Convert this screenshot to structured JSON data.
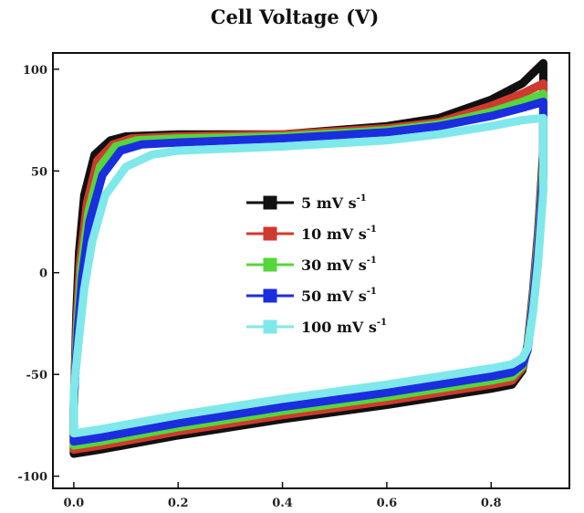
{
  "chart_data": {
    "type": "line",
    "title": "Cell Voltage (V)",
    "xlabel": "",
    "ylabel": "",
    "xlim": [
      -0.04,
      0.95
    ],
    "ylim": [
      -106,
      108
    ],
    "xticks": [
      "0.0",
      "0.2",
      "0.4",
      "0.6",
      "0.8"
    ],
    "xtick_values": [
      0.0,
      0.2,
      0.4,
      0.6,
      0.8
    ],
    "yticks": [
      "-100",
      "-50",
      "0",
      "50",
      "100"
    ],
    "ytick_values": [
      -100,
      -50,
      0,
      50,
      100
    ],
    "legend_position": "center",
    "series": [
      {
        "name": "5 mV s-1",
        "unit_main": "5 mV s",
        "unit_sup": "-1",
        "color": "#111111",
        "upper": [
          [
            0.0,
            -68
          ],
          [
            0.005,
            -20
          ],
          [
            0.01,
            10
          ],
          [
            0.02,
            38
          ],
          [
            0.04,
            58
          ],
          [
            0.07,
            65
          ],
          [
            0.1,
            67
          ],
          [
            0.2,
            68
          ],
          [
            0.4,
            68
          ],
          [
            0.6,
            72
          ],
          [
            0.7,
            76
          ],
          [
            0.8,
            85
          ],
          [
            0.86,
            93
          ],
          [
            0.9,
            103
          ]
        ],
        "lower": [
          [
            0.9,
            103
          ],
          [
            0.9,
            60
          ],
          [
            0.89,
            20
          ],
          [
            0.88,
            -10
          ],
          [
            0.87,
            -35
          ],
          [
            0.86,
            -48
          ],
          [
            0.84,
            -55
          ],
          [
            0.8,
            -57
          ],
          [
            0.6,
            -65
          ],
          [
            0.4,
            -72
          ],
          [
            0.2,
            -80
          ],
          [
            0.05,
            -87
          ],
          [
            0.0,
            -89
          ],
          [
            0.0,
            -68
          ]
        ]
      },
      {
        "name": "10 mV s-1",
        "unit_main": "10 mV s",
        "unit_sup": "-1",
        "color": "#d03a2e",
        "upper": [
          [
            0.0,
            -66
          ],
          [
            0.006,
            -22
          ],
          [
            0.012,
            5
          ],
          [
            0.025,
            34
          ],
          [
            0.045,
            55
          ],
          [
            0.075,
            63
          ],
          [
            0.11,
            66
          ],
          [
            0.2,
            67
          ],
          [
            0.4,
            68
          ],
          [
            0.6,
            71
          ],
          [
            0.7,
            74
          ],
          [
            0.8,
            82
          ],
          [
            0.86,
            88
          ],
          [
            0.9,
            93
          ]
        ],
        "lower": [
          [
            0.9,
            93
          ],
          [
            0.9,
            55
          ],
          [
            0.89,
            18
          ],
          [
            0.88,
            -12
          ],
          [
            0.87,
            -36
          ],
          [
            0.86,
            -47
          ],
          [
            0.84,
            -53
          ],
          [
            0.8,
            -55
          ],
          [
            0.6,
            -63
          ],
          [
            0.4,
            -70
          ],
          [
            0.2,
            -78
          ],
          [
            0.05,
            -85
          ],
          [
            0.0,
            -87
          ],
          [
            0.0,
            -66
          ]
        ]
      },
      {
        "name": "30 mV s-1",
        "unit_main": "30 mV s",
        "unit_sup": "-1",
        "color": "#55d63a",
        "upper": [
          [
            0.0,
            -65
          ],
          [
            0.007,
            -25
          ],
          [
            0.014,
            2
          ],
          [
            0.028,
            30
          ],
          [
            0.05,
            52
          ],
          [
            0.08,
            62
          ],
          [
            0.12,
            65
          ],
          [
            0.2,
            66
          ],
          [
            0.4,
            67
          ],
          [
            0.6,
            70
          ],
          [
            0.7,
            73
          ],
          [
            0.8,
            79
          ],
          [
            0.86,
            84
          ],
          [
            0.9,
            88
          ]
        ],
        "lower": [
          [
            0.9,
            88
          ],
          [
            0.9,
            52
          ],
          [
            0.89,
            15
          ],
          [
            0.88,
            -14
          ],
          [
            0.87,
            -37
          ],
          [
            0.86,
            -46
          ],
          [
            0.84,
            -51
          ],
          [
            0.8,
            -53
          ],
          [
            0.6,
            -61
          ],
          [
            0.4,
            -68
          ],
          [
            0.2,
            -76
          ],
          [
            0.05,
            -83
          ],
          [
            0.0,
            -85
          ],
          [
            0.0,
            -65
          ]
        ]
      },
      {
        "name": "50 mV s-1",
        "unit_main": "50 mV s",
        "unit_sup": "-1",
        "color": "#1a2ee0",
        "upper": [
          [
            0.0,
            -63
          ],
          [
            0.008,
            -28
          ],
          [
            0.016,
            -2
          ],
          [
            0.03,
            25
          ],
          [
            0.055,
            48
          ],
          [
            0.09,
            60
          ],
          [
            0.13,
            63
          ],
          [
            0.2,
            64
          ],
          [
            0.4,
            66
          ],
          [
            0.6,
            69
          ],
          [
            0.7,
            72
          ],
          [
            0.8,
            77
          ],
          [
            0.86,
            81
          ],
          [
            0.9,
            84
          ]
        ],
        "lower": [
          [
            0.9,
            84
          ],
          [
            0.9,
            48
          ],
          [
            0.89,
            12
          ],
          [
            0.88,
            -16
          ],
          [
            0.87,
            -38
          ],
          [
            0.86,
            -45
          ],
          [
            0.84,
            -49
          ],
          [
            0.8,
            -51
          ],
          [
            0.6,
            -59
          ],
          [
            0.4,
            -66
          ],
          [
            0.2,
            -74
          ],
          [
            0.05,
            -81
          ],
          [
            0.0,
            -83
          ],
          [
            0.0,
            -63
          ]
        ]
      },
      {
        "name": "100 mV s-1",
        "unit_main": "100 mV s",
        "unit_sup": "-1",
        "color": "#7fe8ea",
        "upper": [
          [
            0.0,
            -58
          ],
          [
            0.01,
            -32
          ],
          [
            0.02,
            -8
          ],
          [
            0.035,
            15
          ],
          [
            0.06,
            38
          ],
          [
            0.1,
            52
          ],
          [
            0.15,
            58
          ],
          [
            0.2,
            60
          ],
          [
            0.4,
            62
          ],
          [
            0.6,
            65
          ],
          [
            0.7,
            68
          ],
          [
            0.8,
            72
          ],
          [
            0.86,
            75
          ],
          [
            0.9,
            76
          ]
        ],
        "lower": [
          [
            0.9,
            76
          ],
          [
            0.9,
            40
          ],
          [
            0.89,
            5
          ],
          [
            0.88,
            -20
          ],
          [
            0.87,
            -37
          ],
          [
            0.86,
            -42
          ],
          [
            0.84,
            -45
          ],
          [
            0.8,
            -47
          ],
          [
            0.6,
            -55
          ],
          [
            0.4,
            -62
          ],
          [
            0.2,
            -70
          ],
          [
            0.05,
            -77
          ],
          [
            0.0,
            -79
          ],
          [
            0.0,
            -58
          ]
        ]
      }
    ]
  }
}
